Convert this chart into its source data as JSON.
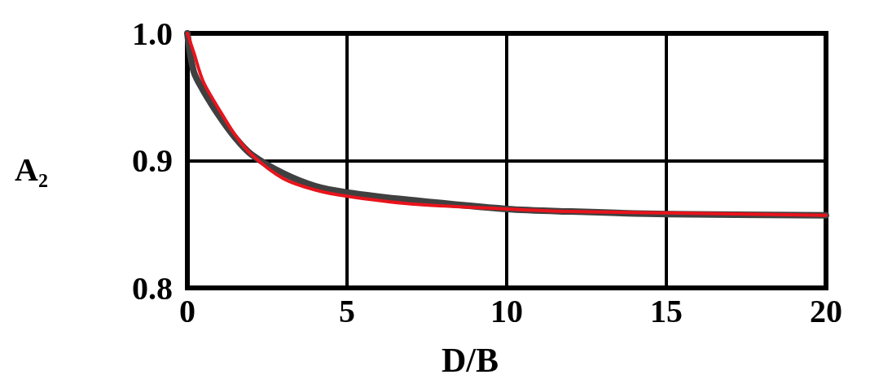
{
  "chart_data": {
    "type": "line",
    "xlabel": "D/B",
    "ylabel": "A₂",
    "xlim": [
      0,
      20
    ],
    "xticks": [
      0,
      5,
      10,
      15,
      20
    ],
    "ylim": [
      0.8,
      1.0
    ],
    "yticks": [
      {
        "value": 0.8,
        "label": "0.8"
      },
      {
        "value": 0.9,
        "label": "0.9"
      },
      {
        "value": 1.0,
        "label": "1.0"
      }
    ],
    "grid": true,
    "marker": "none",
    "line_style": "solid",
    "series": [
      {
        "color": "#404040",
        "x": [
          0,
          0.2,
          0.5,
          1,
          1.5,
          2,
          3,
          4,
          5,
          7,
          10,
          12,
          15,
          20
        ],
        "values": [
          1.0,
          0.97,
          0.955,
          0.935,
          0.918,
          0.905,
          0.89,
          0.88,
          0.875,
          0.869,
          0.862,
          0.86,
          0.858,
          0.857
        ]
      },
      {
        "color": "#e8141c",
        "x": [
          0,
          0.2,
          0.5,
          1,
          1.5,
          2,
          3,
          4,
          5,
          7,
          10,
          12,
          15,
          20
        ],
        "values": [
          1.0,
          0.985,
          0.962,
          0.94,
          0.92,
          0.905,
          0.886,
          0.877,
          0.872,
          0.866,
          0.862,
          0.86,
          0.859,
          0.857
        ]
      }
    ]
  }
}
